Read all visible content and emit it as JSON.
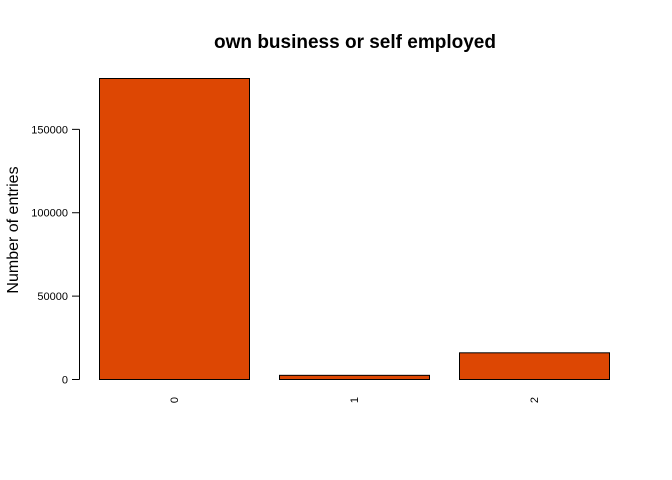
{
  "chart_data": {
    "type": "bar",
    "title": "own business or self employed",
    "xlabel": "",
    "ylabel": "Number of entries",
    "categories": [
      "0",
      "1",
      "2"
    ],
    "values": [
      180500,
      2500,
      16000
    ],
    "ylim": [
      0,
      180500
    ],
    "yticks": [
      0,
      50000,
      100000,
      150000
    ],
    "ytick_labels": [
      "0",
      "50000",
      "100000",
      "150000"
    ],
    "bar_color": "#dd4703",
    "bar_border_color": "#000000",
    "grid": false,
    "legend": "none"
  }
}
